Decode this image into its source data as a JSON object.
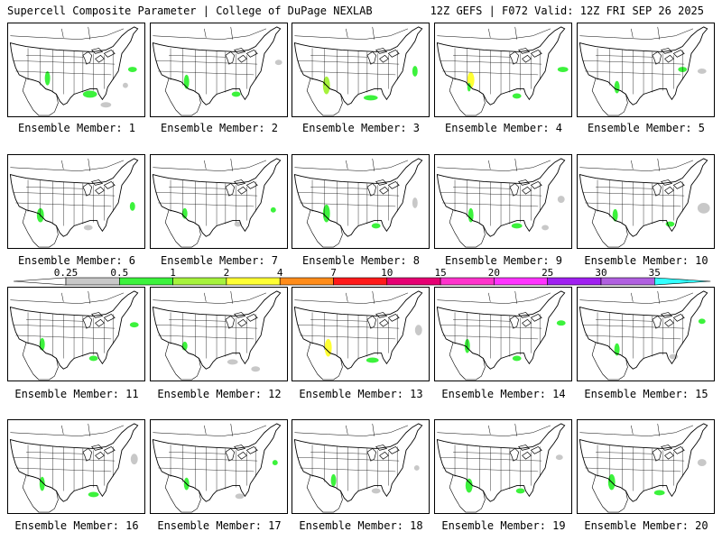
{
  "header": {
    "left": "Supercell Composite Parameter | College of DuPage NEXLAB",
    "right": "12Z GEFS | F072 Valid: 12Z FRI SEP 26 2025"
  },
  "member_prefix": "Ensemble Member:",
  "members": [
    {
      "id": 1,
      "label": "Ensemble Member: 1"
    },
    {
      "id": 2,
      "label": "Ensemble Member: 2"
    },
    {
      "id": 3,
      "label": "Ensemble Member: 3"
    },
    {
      "id": 4,
      "label": "Ensemble Member: 4"
    },
    {
      "id": 5,
      "label": "Ensemble Member: 5"
    },
    {
      "id": 6,
      "label": "Ensemble Member: 6"
    },
    {
      "id": 7,
      "label": "Ensemble Member: 7"
    },
    {
      "id": 8,
      "label": "Ensemble Member: 8"
    },
    {
      "id": 9,
      "label": "Ensemble Member: 9"
    },
    {
      "id": 10,
      "label": "Ensemble Member: 10"
    },
    {
      "id": 11,
      "label": "Ensemble Member: 11"
    },
    {
      "id": 12,
      "label": "Ensemble Member: 12"
    },
    {
      "id": 13,
      "label": "Ensemble Member: 13"
    },
    {
      "id": 14,
      "label": "Ensemble Member: 14"
    },
    {
      "id": 15,
      "label": "Ensemble Member: 15"
    },
    {
      "id": 16,
      "label": "Ensemble Member: 16"
    },
    {
      "id": 17,
      "label": "Ensemble Member: 17"
    },
    {
      "id": 18,
      "label": "Ensemble Member: 18"
    },
    {
      "id": 19,
      "label": "Ensemble Member: 19"
    },
    {
      "id": 20,
      "label": "Ensemble Member: 20"
    }
  ],
  "colorbar": {
    "ticks": [
      "0.25",
      "0.5",
      "1",
      "2",
      "4",
      "7",
      "10",
      "15",
      "20",
      "25",
      "30",
      "35"
    ],
    "colors": [
      "#ffffff",
      "#c8c8c8",
      "#3cf23c",
      "#a6f23c",
      "#ffff33",
      "#ff8c1a",
      "#ff1a1a",
      "#e60073",
      "#ff33cc",
      "#ff33ff",
      "#a020f0",
      "#b060e0",
      "#33ffff"
    ]
  },
  "field_colors": {
    "low": "#c8c8c8",
    "mid": "#3cf23c",
    "high": "#a6f23c",
    "peak": "#ffff33"
  }
}
